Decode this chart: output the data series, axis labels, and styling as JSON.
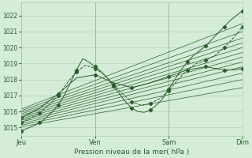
{
  "xlabel": "Pression niveau de la mer( hPa )",
  "bg_color": "#d4ecd8",
  "plot_bg_color": "#d4ecd8",
  "grid_color": "#b0cfb4",
  "line_color": "#2d5e2d",
  "text_color": "#2d5e2d",
  "ylim": [
    1014.5,
    1022.8
  ],
  "xlim": [
    0,
    72
  ],
  "yticks": [
    1015,
    1016,
    1017,
    1018,
    1019,
    1020,
    1021,
    1022
  ],
  "xtick_positions": [
    0,
    24,
    48,
    72
  ],
  "xtick_labels": [
    "Jeu",
    "Ven",
    "Sam",
    "Dim"
  ],
  "markersize": 2.2,
  "linewidth": 0.7,
  "ensemble_starts": [
    1015.05,
    1015.15,
    1015.25,
    1015.35,
    1015.45,
    1015.55,
    1015.65,
    1015.75,
    1015.85,
    1015.95,
    1016.05,
    1016.15
  ],
  "ensemble_ends": [
    1017.5,
    1018.0,
    1018.4,
    1018.8,
    1019.1,
    1019.4,
    1019.7,
    1020.0,
    1020.3,
    1020.6,
    1021.0,
    1021.5
  ]
}
